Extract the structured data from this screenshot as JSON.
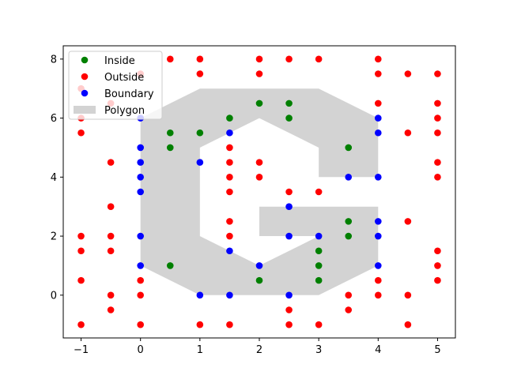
{
  "chart_data": {
    "type": "scatter",
    "title": "",
    "xlabel": "",
    "ylabel": "",
    "xlim": [
      -1.3,
      5.3
    ],
    "ylim": [
      -1.45,
      8.45
    ],
    "grid": false,
    "legend_position": "top-left",
    "x_ticks": [
      {
        "value": -1,
        "label": "−1"
      },
      {
        "value": 0,
        "label": "0"
      },
      {
        "value": 1,
        "label": "1"
      },
      {
        "value": 2,
        "label": "2"
      },
      {
        "value": 3,
        "label": "3"
      },
      {
        "value": 4,
        "label": "4"
      },
      {
        "value": 5,
        "label": "5"
      }
    ],
    "y_ticks": [
      {
        "value": 0,
        "label": "0"
      },
      {
        "value": 2,
        "label": "2"
      },
      {
        "value": 4,
        "label": "4"
      },
      {
        "value": 6,
        "label": "6"
      },
      {
        "value": 8,
        "label": "8"
      }
    ],
    "polygon": {
      "name": "Polygon",
      "color": "#d3d3d3",
      "vertices": [
        [
          0,
          6
        ],
        [
          1,
          7
        ],
        [
          3,
          7
        ],
        [
          4,
          6
        ],
        [
          4,
          4
        ],
        [
          3,
          4
        ],
        [
          3,
          5
        ],
        [
          2,
          6
        ],
        [
          1,
          5
        ],
        [
          1,
          2
        ],
        [
          2,
          1
        ],
        [
          3,
          2
        ],
        [
          2,
          2
        ],
        [
          2,
          3
        ],
        [
          4,
          3
        ],
        [
          4,
          1
        ],
        [
          3,
          0
        ],
        [
          1,
          0
        ],
        [
          0,
          1
        ]
      ]
    },
    "series": [
      {
        "name": "Inside",
        "color": "#008000",
        "points": [
          [
            1.5,
            6.0
          ],
          [
            2.0,
            6.5
          ],
          [
            2.5,
            6.5
          ],
          [
            2.5,
            6.0
          ],
          [
            0.5,
            5.5
          ],
          [
            1.0,
            5.5
          ],
          [
            0.5,
            5.0
          ],
          [
            3.5,
            5.0
          ],
          [
            3.5,
            2.5
          ],
          [
            3.5,
            2.0
          ],
          [
            3.0,
            1.5
          ],
          [
            3.0,
            1.0
          ],
          [
            0.5,
            1.0
          ],
          [
            2.0,
            0.5
          ],
          [
            3.0,
            0.5
          ]
        ]
      },
      {
        "name": "Outside",
        "color": "#ff0000",
        "points": [
          [
            0.5,
            8
          ],
          [
            1,
            8
          ],
          [
            2,
            8
          ],
          [
            2.5,
            8
          ],
          [
            3,
            8
          ],
          [
            4,
            8
          ],
          [
            0,
            7.5
          ],
          [
            1,
            7.5
          ],
          [
            2,
            7.5
          ],
          [
            4,
            7.5
          ],
          [
            4.5,
            7.5
          ],
          [
            5,
            7.5
          ],
          [
            -1,
            7
          ],
          [
            -0.5,
            6.5
          ],
          [
            4,
            6.5
          ],
          [
            5,
            6.5
          ],
          [
            -1,
            6
          ],
          [
            5,
            6
          ],
          [
            -1,
            5.5
          ],
          [
            4.5,
            5.5
          ],
          [
            5,
            5.5
          ],
          [
            1.5,
            5
          ],
          [
            -0.5,
            4.5
          ],
          [
            1.5,
            4.5
          ],
          [
            2,
            4.5
          ],
          [
            5,
            4.5
          ],
          [
            1.5,
            4
          ],
          [
            2,
            4
          ],
          [
            5,
            4
          ],
          [
            1.5,
            3.5
          ],
          [
            2.5,
            3.5
          ],
          [
            3,
            3.5
          ],
          [
            -0.5,
            3
          ],
          [
            1.5,
            2.5
          ],
          [
            4.5,
            2.5
          ],
          [
            -1,
            2
          ],
          [
            -0.5,
            2
          ],
          [
            1.5,
            2
          ],
          [
            -1,
            1.5
          ],
          [
            -0.5,
            1.5
          ],
          [
            5,
            1.5
          ],
          [
            5,
            1
          ],
          [
            -1,
            0.5
          ],
          [
            0,
            0.5
          ],
          [
            4,
            0.5
          ],
          [
            5,
            0.5
          ],
          [
            -0.5,
            0
          ],
          [
            0,
            0
          ],
          [
            3.5,
            0
          ],
          [
            4,
            0
          ],
          [
            4.5,
            0
          ],
          [
            -0.5,
            -0.5
          ],
          [
            2.5,
            -0.5
          ],
          [
            3.5,
            -0.5
          ],
          [
            -1,
            -1
          ],
          [
            0,
            -1
          ],
          [
            1,
            -1
          ],
          [
            1.5,
            -1
          ],
          [
            2.5,
            -1
          ],
          [
            3,
            -1
          ],
          [
            4.5,
            -1
          ]
        ]
      },
      {
        "name": "Boundary",
        "color": "#0000ff",
        "points": [
          [
            0,
            6
          ],
          [
            4,
            6
          ],
          [
            1.5,
            5.5
          ],
          [
            4,
            5.5
          ],
          [
            0,
            5
          ],
          [
            0,
            4.5
          ],
          [
            1,
            4.5
          ],
          [
            0,
            4
          ],
          [
            3.5,
            4
          ],
          [
            4,
            4
          ],
          [
            0,
            3.5
          ],
          [
            2.5,
            3
          ],
          [
            4,
            2.5
          ],
          [
            0,
            2
          ],
          [
            2.5,
            2
          ],
          [
            3,
            2
          ],
          [
            4,
            2
          ],
          [
            1.5,
            1.5
          ],
          [
            0,
            1
          ],
          [
            2,
            1
          ],
          [
            4,
            1
          ],
          [
            1,
            0
          ],
          [
            1.5,
            0
          ],
          [
            2.5,
            0
          ]
        ]
      }
    ]
  }
}
